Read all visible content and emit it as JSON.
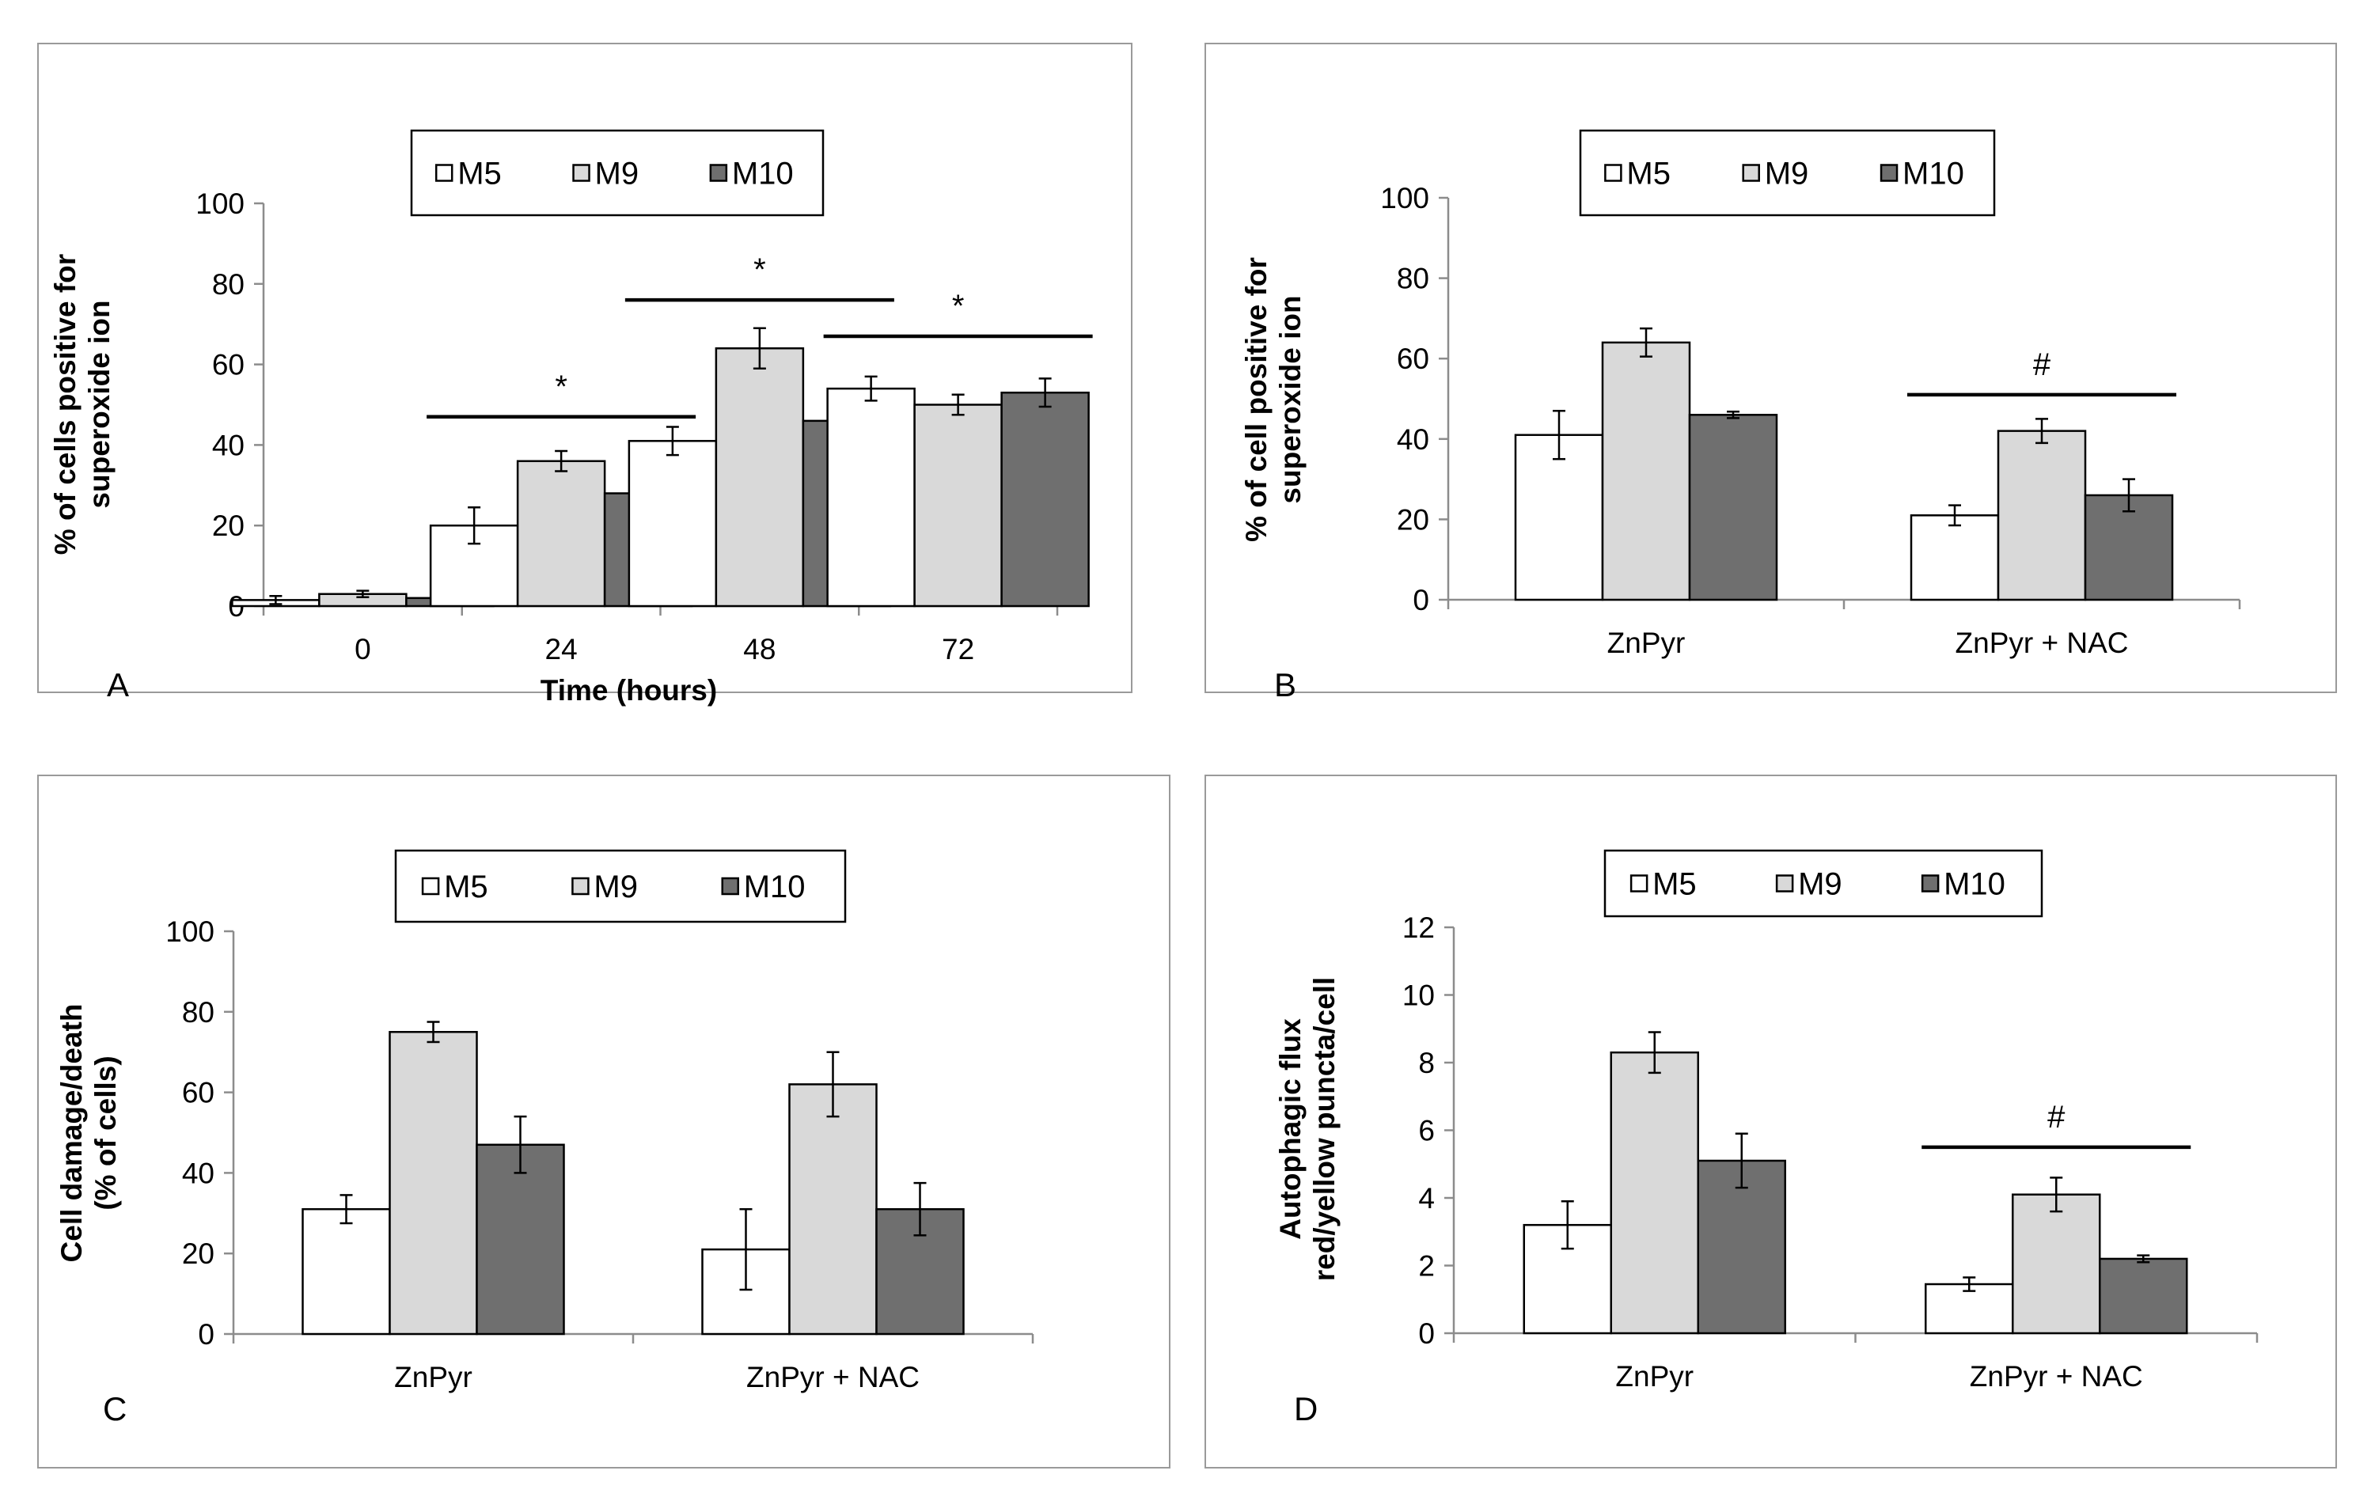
{
  "chart_data": [
    {
      "type": "bar",
      "panel_label": "A",
      "categories": [
        "0",
        "24",
        "48",
        "72"
      ],
      "series": [
        {
          "name": "M5",
          "color": "#ffffff",
          "values": [
            1.5,
            20,
            41,
            54
          ],
          "errors": [
            1,
            4.5,
            3.5,
            3
          ]
        },
        {
          "name": "M9",
          "color": "#d9d9d9",
          "values": [
            3,
            36,
            64,
            50
          ],
          "errors": [
            0.8,
            2.5,
            5,
            2.5
          ]
        },
        {
          "name": "M10",
          "color": "#6f6f6f",
          "values": [
            2,
            28,
            46,
            53
          ],
          "errors": [
            1,
            3.5,
            3,
            3.5
          ]
        }
      ],
      "xlabel": "Time (hours)",
      "ylabel": [
        "% of cells positive for",
        "superoxide ion"
      ],
      "ylim": [
        0,
        100
      ],
      "yticks": [
        0,
        20,
        40,
        60,
        80,
        100
      ],
      "legend_position": "top-center",
      "annotations": [
        {
          "label": "*",
          "category_index": 1,
          "level": 47
        },
        {
          "label": "*",
          "category_index": 2,
          "level": 76
        },
        {
          "label": "*",
          "category_index": 3,
          "level": 67
        }
      ]
    },
    {
      "type": "bar",
      "panel_label": "B",
      "categories": [
        "ZnPyr",
        "ZnPyr + NAC"
      ],
      "series": [
        {
          "name": "M5",
          "color": "#ffffff",
          "values": [
            41,
            21
          ],
          "errors": [
            6,
            2.5
          ]
        },
        {
          "name": "M9",
          "color": "#d9d9d9",
          "values": [
            64,
            42
          ],
          "errors": [
            3.5,
            3
          ]
        },
        {
          "name": "M10",
          "color": "#6f6f6f",
          "values": [
            46,
            26
          ],
          "errors": [
            0.8,
            4
          ]
        }
      ],
      "xlabel": "",
      "ylabel": [
        "% of cell positive for",
        "superoxide ion"
      ],
      "ylim": [
        0,
        100
      ],
      "yticks": [
        0,
        20,
        40,
        60,
        80,
        100
      ],
      "legend_position": "top-center",
      "annotations": [
        {
          "label": "#",
          "category_index": 1,
          "level": 51
        }
      ]
    },
    {
      "type": "bar",
      "panel_label": "C",
      "categories": [
        "ZnPyr",
        "ZnPyr + NAC"
      ],
      "series": [
        {
          "name": "M5",
          "color": "#ffffff",
          "values": [
            31,
            21
          ],
          "errors": [
            3.5,
            10
          ]
        },
        {
          "name": "M9",
          "color": "#d9d9d9",
          "values": [
            75,
            62
          ],
          "errors": [
            2.5,
            8
          ]
        },
        {
          "name": "M10",
          "color": "#6f6f6f",
          "values": [
            47,
            31
          ],
          "errors": [
            7,
            6.5
          ]
        }
      ],
      "xlabel": "",
      "ylabel": [
        "Cell damage/death",
        "(% of cells)"
      ],
      "ylim": [
        0,
        100
      ],
      "yticks": [
        0,
        20,
        40,
        60,
        80,
        100
      ],
      "legend_position": "top-center",
      "annotations": []
    },
    {
      "type": "bar",
      "panel_label": "D",
      "categories": [
        "ZnPyr",
        "ZnPyr + NAC"
      ],
      "series": [
        {
          "name": "M5",
          "color": "#ffffff",
          "values": [
            3.2,
            1.45
          ],
          "errors": [
            0.7,
            0.2
          ]
        },
        {
          "name": "M9",
          "color": "#d9d9d9",
          "values": [
            8.3,
            4.1
          ],
          "errors": [
            0.6,
            0.5
          ]
        },
        {
          "name": "M10",
          "color": "#6f6f6f",
          "values": [
            5.1,
            2.2
          ],
          "errors": [
            0.8,
            0.1
          ]
        }
      ],
      "xlabel": "",
      "ylabel": [
        "Autophagic flux",
        "red/yellow puncta/cell"
      ],
      "ylim": [
        0,
        12
      ],
      "yticks": [
        0,
        2,
        4,
        6,
        8,
        10,
        12
      ],
      "legend_position": "top-center",
      "annotations": [
        {
          "label": "#",
          "category_index": 1,
          "level": 5.5
        }
      ]
    }
  ]
}
